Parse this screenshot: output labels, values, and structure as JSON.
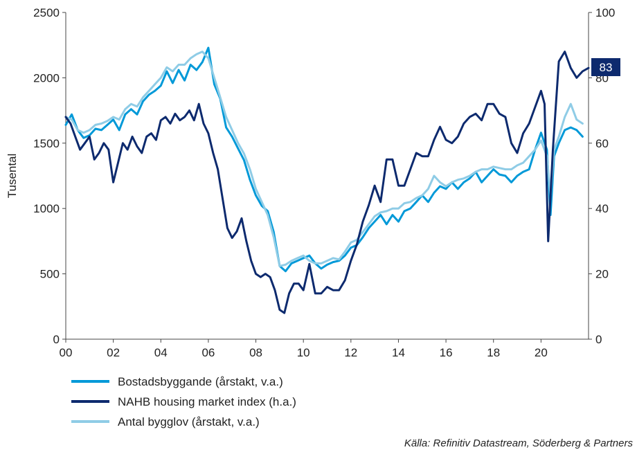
{
  "chart_data": {
    "type": "line",
    "title": "",
    "ylabel_left": "Tusental",
    "ylabel_right": "",
    "x_tick_labels": [
      "00",
      "02",
      "04",
      "06",
      "08",
      "10",
      "12",
      "14",
      "16",
      "18",
      "20"
    ],
    "x_range": [
      2000,
      2022
    ],
    "ylim_left": [
      0,
      2500
    ],
    "ylim_right": [
      0,
      100
    ],
    "y_ticks_left": [
      "0",
      "500",
      "1000",
      "1500",
      "2000",
      "2500"
    ],
    "y_ticks_right": [
      "0",
      "20",
      "40",
      "60",
      "80",
      "100"
    ],
    "grid": false,
    "legend_position": "bottom-left",
    "end_label": "83",
    "source": "Källa: Refinitiv Datastream, Söderberg & Partners",
    "series": [
      {
        "name": "Bostadsbyggande (årstakt, v.a.)",
        "axis": "left",
        "color": "#0099d8",
        "points": [
          [
            2000.0,
            1640
          ],
          [
            2000.25,
            1720
          ],
          [
            2000.5,
            1600
          ],
          [
            2000.75,
            1540
          ],
          [
            2001.0,
            1560
          ],
          [
            2001.25,
            1610
          ],
          [
            2001.5,
            1600
          ],
          [
            2001.75,
            1640
          ],
          [
            2002.0,
            1680
          ],
          [
            2002.25,
            1600
          ],
          [
            2002.5,
            1720
          ],
          [
            2002.75,
            1760
          ],
          [
            2003.0,
            1720
          ],
          [
            2003.25,
            1820
          ],
          [
            2003.5,
            1870
          ],
          [
            2003.75,
            1900
          ],
          [
            2004.0,
            1940
          ],
          [
            2004.25,
            2050
          ],
          [
            2004.5,
            1960
          ],
          [
            2004.75,
            2060
          ],
          [
            2005.0,
            1980
          ],
          [
            2005.25,
            2100
          ],
          [
            2005.5,
            2060
          ],
          [
            2005.75,
            2120
          ],
          [
            2006.0,
            2230
          ],
          [
            2006.25,
            1950
          ],
          [
            2006.5,
            1840
          ],
          [
            2006.75,
            1620
          ],
          [
            2007.0,
            1550
          ],
          [
            2007.25,
            1460
          ],
          [
            2007.5,
            1370
          ],
          [
            2007.75,
            1220
          ],
          [
            2008.0,
            1100
          ],
          [
            2008.25,
            1020
          ],
          [
            2008.5,
            980
          ],
          [
            2008.75,
            820
          ],
          [
            2009.0,
            560
          ],
          [
            2009.25,
            520
          ],
          [
            2009.5,
            580
          ],
          [
            2009.75,
            600
          ],
          [
            2010.0,
            620
          ],
          [
            2010.25,
            640
          ],
          [
            2010.5,
            580
          ],
          [
            2010.75,
            540
          ],
          [
            2011.0,
            570
          ],
          [
            2011.25,
            590
          ],
          [
            2011.5,
            600
          ],
          [
            2011.75,
            640
          ],
          [
            2012.0,
            700
          ],
          [
            2012.25,
            720
          ],
          [
            2012.5,
            780
          ],
          [
            2012.75,
            850
          ],
          [
            2013.0,
            900
          ],
          [
            2013.25,
            950
          ],
          [
            2013.5,
            880
          ],
          [
            2013.75,
            950
          ],
          [
            2014.0,
            900
          ],
          [
            2014.25,
            980
          ],
          [
            2014.5,
            1000
          ],
          [
            2014.75,
            1050
          ],
          [
            2015.0,
            1100
          ],
          [
            2015.25,
            1050
          ],
          [
            2015.5,
            1120
          ],
          [
            2015.75,
            1170
          ],
          [
            2016.0,
            1150
          ],
          [
            2016.25,
            1200
          ],
          [
            2016.5,
            1150
          ],
          [
            2016.75,
            1200
          ],
          [
            2017.0,
            1230
          ],
          [
            2017.25,
            1280
          ],
          [
            2017.5,
            1200
          ],
          [
            2017.75,
            1250
          ],
          [
            2018.0,
            1300
          ],
          [
            2018.25,
            1260
          ],
          [
            2018.5,
            1250
          ],
          [
            2018.75,
            1200
          ],
          [
            2019.0,
            1250
          ],
          [
            2019.25,
            1280
          ],
          [
            2019.5,
            1300
          ],
          [
            2019.75,
            1450
          ],
          [
            2020.0,
            1580
          ],
          [
            2020.25,
            1450
          ],
          [
            2020.4,
            950
          ],
          [
            2020.55,
            1400
          ],
          [
            2020.75,
            1500
          ],
          [
            2021.0,
            1600
          ],
          [
            2021.25,
            1620
          ],
          [
            2021.5,
            1600
          ],
          [
            2021.75,
            1550
          ]
        ]
      },
      {
        "name": "NAHB housing market index (h.a.)",
        "axis": "right",
        "color": "#0d2a6e",
        "points": [
          [
            2000.0,
            68
          ],
          [
            2000.2,
            66
          ],
          [
            2000.4,
            62
          ],
          [
            2000.6,
            58
          ],
          [
            2000.8,
            60
          ],
          [
            2001.0,
            62
          ],
          [
            2001.2,
            55
          ],
          [
            2001.4,
            57
          ],
          [
            2001.6,
            60
          ],
          [
            2001.8,
            58
          ],
          [
            2002.0,
            48
          ],
          [
            2002.2,
            54
          ],
          [
            2002.4,
            60
          ],
          [
            2002.6,
            58
          ],
          [
            2002.8,
            62
          ],
          [
            2003.0,
            59
          ],
          [
            2003.2,
            57
          ],
          [
            2003.4,
            62
          ],
          [
            2003.6,
            63
          ],
          [
            2003.8,
            61
          ],
          [
            2004.0,
            67
          ],
          [
            2004.2,
            68
          ],
          [
            2004.4,
            66
          ],
          [
            2004.6,
            69
          ],
          [
            2004.8,
            67
          ],
          [
            2005.0,
            68
          ],
          [
            2005.2,
            70
          ],
          [
            2005.4,
            67
          ],
          [
            2005.6,
            72
          ],
          [
            2005.8,
            66
          ],
          [
            2006.0,
            63
          ],
          [
            2006.2,
            57
          ],
          [
            2006.4,
            52
          ],
          [
            2006.6,
            43
          ],
          [
            2006.8,
            34
          ],
          [
            2007.0,
            31
          ],
          [
            2007.2,
            33
          ],
          [
            2007.4,
            37
          ],
          [
            2007.6,
            30
          ],
          [
            2007.8,
            24
          ],
          [
            2008.0,
            20
          ],
          [
            2008.2,
            19
          ],
          [
            2008.4,
            20
          ],
          [
            2008.6,
            19
          ],
          [
            2008.8,
            15
          ],
          [
            2009.0,
            9
          ],
          [
            2009.2,
            8
          ],
          [
            2009.4,
            14
          ],
          [
            2009.6,
            17
          ],
          [
            2009.8,
            17
          ],
          [
            2010.0,
            15
          ],
          [
            2010.25,
            23
          ],
          [
            2010.5,
            14
          ],
          [
            2010.75,
            14
          ],
          [
            2011.0,
            16
          ],
          [
            2011.25,
            15
          ],
          [
            2011.5,
            15
          ],
          [
            2011.75,
            18
          ],
          [
            2012.0,
            24
          ],
          [
            2012.25,
            29
          ],
          [
            2012.5,
            36
          ],
          [
            2012.75,
            41
          ],
          [
            2013.0,
            47
          ],
          [
            2013.25,
            42
          ],
          [
            2013.5,
            55
          ],
          [
            2013.75,
            55
          ],
          [
            2014.0,
            47
          ],
          [
            2014.25,
            47
          ],
          [
            2014.5,
            52
          ],
          [
            2014.75,
            57
          ],
          [
            2015.0,
            56
          ],
          [
            2015.25,
            56
          ],
          [
            2015.5,
            61
          ],
          [
            2015.75,
            65
          ],
          [
            2016.0,
            61
          ],
          [
            2016.25,
            60
          ],
          [
            2016.5,
            62
          ],
          [
            2016.75,
            66
          ],
          [
            2017.0,
            68
          ],
          [
            2017.25,
            69
          ],
          [
            2017.5,
            67
          ],
          [
            2017.75,
            72
          ],
          [
            2018.0,
            72
          ],
          [
            2018.25,
            69
          ],
          [
            2018.5,
            68
          ],
          [
            2018.75,
            60
          ],
          [
            2019.0,
            57
          ],
          [
            2019.25,
            63
          ],
          [
            2019.5,
            66
          ],
          [
            2019.75,
            71
          ],
          [
            2020.0,
            76
          ],
          [
            2020.15,
            72
          ],
          [
            2020.3,
            30
          ],
          [
            2020.5,
            58
          ],
          [
            2020.75,
            85
          ],
          [
            2021.0,
            88
          ],
          [
            2021.25,
            83
          ],
          [
            2021.5,
            80
          ],
          [
            2021.75,
            82
          ],
          [
            2022.0,
            83
          ]
        ]
      },
      {
        "name": "Antal bygglov (årstakt, v.a.)",
        "axis": "left",
        "color": "#8fcce6",
        "points": [
          [
            2000.0,
            1700
          ],
          [
            2000.25,
            1680
          ],
          [
            2000.5,
            1600
          ],
          [
            2000.75,
            1580
          ],
          [
            2001.0,
            1600
          ],
          [
            2001.25,
            1640
          ],
          [
            2001.5,
            1650
          ],
          [
            2001.75,
            1670
          ],
          [
            2002.0,
            1700
          ],
          [
            2002.25,
            1680
          ],
          [
            2002.5,
            1760
          ],
          [
            2002.75,
            1800
          ],
          [
            2003.0,
            1780
          ],
          [
            2003.25,
            1850
          ],
          [
            2003.5,
            1900
          ],
          [
            2003.75,
            1950
          ],
          [
            2004.0,
            2000
          ],
          [
            2004.25,
            2080
          ],
          [
            2004.5,
            2050
          ],
          [
            2004.75,
            2100
          ],
          [
            2005.0,
            2100
          ],
          [
            2005.25,
            2150
          ],
          [
            2005.5,
            2180
          ],
          [
            2005.75,
            2200
          ],
          [
            2006.0,
            2150
          ],
          [
            2006.25,
            2000
          ],
          [
            2006.5,
            1850
          ],
          [
            2006.75,
            1700
          ],
          [
            2007.0,
            1600
          ],
          [
            2007.25,
            1500
          ],
          [
            2007.5,
            1420
          ],
          [
            2007.75,
            1300
          ],
          [
            2008.0,
            1150
          ],
          [
            2008.25,
            1050
          ],
          [
            2008.5,
            950
          ],
          [
            2008.75,
            780
          ],
          [
            2009.0,
            560
          ],
          [
            2009.25,
            570
          ],
          [
            2009.5,
            600
          ],
          [
            2009.75,
            620
          ],
          [
            2010.0,
            640
          ],
          [
            2010.25,
            600
          ],
          [
            2010.5,
            580
          ],
          [
            2010.75,
            580
          ],
          [
            2011.0,
            600
          ],
          [
            2011.25,
            620
          ],
          [
            2011.5,
            610
          ],
          [
            2011.75,
            670
          ],
          [
            2012.0,
            740
          ],
          [
            2012.25,
            760
          ],
          [
            2012.5,
            820
          ],
          [
            2012.75,
            880
          ],
          [
            2013.0,
            940
          ],
          [
            2013.25,
            970
          ],
          [
            2013.5,
            980
          ],
          [
            2013.75,
            1000
          ],
          [
            2014.0,
            1000
          ],
          [
            2014.25,
            1040
          ],
          [
            2014.5,
            1050
          ],
          [
            2014.75,
            1080
          ],
          [
            2015.0,
            1100
          ],
          [
            2015.25,
            1150
          ],
          [
            2015.5,
            1250
          ],
          [
            2015.75,
            1200
          ],
          [
            2016.0,
            1170
          ],
          [
            2016.25,
            1200
          ],
          [
            2016.5,
            1220
          ],
          [
            2016.75,
            1230
          ],
          [
            2017.0,
            1250
          ],
          [
            2017.25,
            1280
          ],
          [
            2017.5,
            1300
          ],
          [
            2017.75,
            1300
          ],
          [
            2018.0,
            1320
          ],
          [
            2018.25,
            1310
          ],
          [
            2018.5,
            1300
          ],
          [
            2018.75,
            1300
          ],
          [
            2019.0,
            1330
          ],
          [
            2019.25,
            1350
          ],
          [
            2019.5,
            1400
          ],
          [
            2019.75,
            1450
          ],
          [
            2020.0,
            1520
          ],
          [
            2020.25,
            1400
          ],
          [
            2020.4,
            1100
          ],
          [
            2020.55,
            1450
          ],
          [
            2020.75,
            1550
          ],
          [
            2021.0,
            1700
          ],
          [
            2021.25,
            1800
          ],
          [
            2021.5,
            1680
          ],
          [
            2021.75,
            1650
          ]
        ]
      }
    ]
  }
}
